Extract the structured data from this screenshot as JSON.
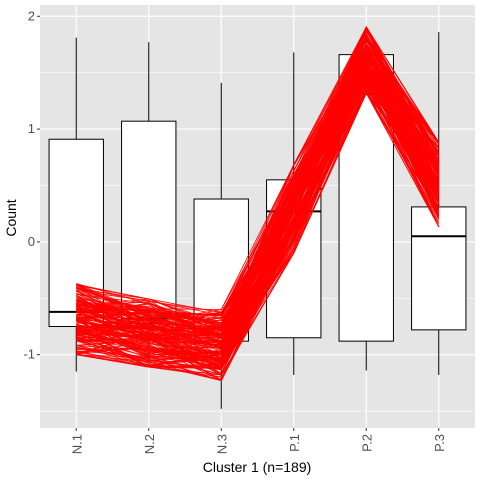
{
  "chart_data": {
    "type": "boxplot-with-lines",
    "title": "",
    "xlabel": "Cluster 1 (n=189)",
    "ylabel": "Count",
    "categories": [
      "N.1",
      "N.2",
      "N.3",
      "P.1",
      "P.2",
      "P.3"
    ],
    "ylim": [
      -1.65,
      2.1
    ],
    "yticks": [
      -1,
      0,
      1,
      2
    ],
    "grid": true,
    "legend": "none",
    "box_stats": [
      {
        "category": "N.1",
        "whisker_low": -1.15,
        "q1": -0.75,
        "median": -0.62,
        "q3": 0.91,
        "whisker_high": 1.81
      },
      {
        "category": "N.2",
        "whisker_low": -1.05,
        "q1": -0.72,
        "median": -0.68,
        "q3": 1.07,
        "whisker_high": 1.77
      },
      {
        "category": "N.3",
        "whisker_low": -1.48,
        "q1": -0.88,
        "median": -0.77,
        "q3": 0.38,
        "whisker_high": 1.41
      },
      {
        "category": "P.1",
        "whisker_low": -1.18,
        "q1": -0.85,
        "median": 0.27,
        "q3": 0.55,
        "whisker_high": 1.68
      },
      {
        "category": "P.2",
        "whisker_low": -1.14,
        "q1": -0.88,
        "median": 1.31,
        "q3": 1.66,
        "whisker_high": 1.85
      },
      {
        "category": "P.3",
        "whisker_low": -1.18,
        "q1": -0.78,
        "median": 0.05,
        "q3": 0.31,
        "whisker_high": 1.86
      }
    ],
    "profile_lines": {
      "count": 189,
      "color": "#ff0000",
      "mean": [
        -0.72,
        -0.8,
        -0.88,
        0.3,
        1.6,
        0.5
      ],
      "min": [
        -1.0,
        -1.15,
        -1.3,
        -0.15,
        1.3,
        0.1
      ],
      "max": [
        -0.3,
        -0.48,
        -0.6,
        0.72,
        1.95,
        0.93
      ]
    },
    "colors": {
      "panel_background": "#e5e5e5",
      "grid": "#ffffff",
      "box_fill": "#ffffff",
      "box_outline": "#000000",
      "line": "#ff0000"
    }
  }
}
